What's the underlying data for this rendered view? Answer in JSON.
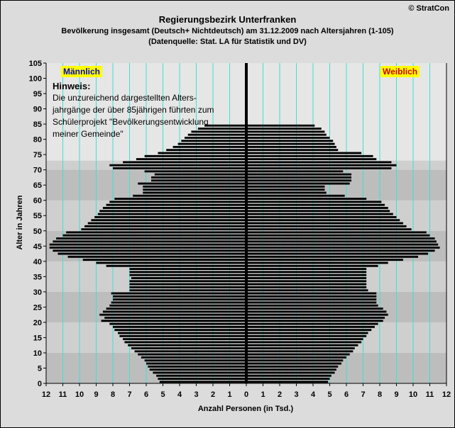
{
  "copyright": "© StratCon",
  "title": "Regierungsbezirk Unterfranken",
  "subtitle": "Bevölkerung  insgesamt (Deutsch+ Nichtdeutsch) am 31.12.2009 nach Altersjahren (1-105)",
  "source": "(Datenquelle: Stat. LA für Statistik und DV)",
  "colors": {
    "bars": "#000000",
    "grid": "#40e0d0",
    "male_box": "#ffff00",
    "male_text": "#0000cc",
    "female_box": "#ffff00",
    "female_text": "#cc0000",
    "band_light": "#e6e6e6",
    "band_mid": "#cfcfcf",
    "band_dark": "#bdbdbd"
  },
  "chart_data": {
    "type": "bar",
    "orientation": "horizontal",
    "title": "Regierungsbezirk Unterfranken",
    "ylabel": "Alter in Jahren",
    "xlabel": "Anzahl Personen (in Tsd.)",
    "yticks": [
      "0",
      "5",
      "10",
      "15",
      "20",
      "25",
      "30",
      "35",
      "40",
      "45",
      "50",
      "55",
      "60",
      "65",
      "70",
      "75",
      "80",
      "85",
      "90",
      "95",
      "100",
      "105"
    ],
    "xticks": [
      "12",
      "11",
      "10",
      "9",
      "8",
      "7",
      "6",
      "5",
      "4",
      "3",
      "2",
      "1",
      "0",
      "1",
      "2",
      "3",
      "4",
      "5",
      "6",
      "7",
      "8",
      "9",
      "10",
      "11",
      "12"
    ],
    "xlim": [
      -12,
      12
    ],
    "ylim": [
      0,
      105
    ],
    "legend": {
      "male": "Männlich",
      "female": "Weiblich"
    },
    "note": {
      "title": "Hinweis:",
      "lines": [
        "Die unzureichend dargestellten Alters-",
        "jahrgänge der über 85jährigen führten zum",
        "Schülerprojekt \"Bevölkerungsentwicklung",
        "meiner Gemeinde\""
      ]
    },
    "ages": [
      0,
      1,
      2,
      3,
      4,
      5,
      6,
      7,
      8,
      9,
      10,
      11,
      12,
      13,
      14,
      15,
      16,
      17,
      18,
      19,
      20,
      21,
      22,
      23,
      24,
      25,
      26,
      27,
      28,
      29,
      30,
      31,
      32,
      33,
      34,
      35,
      36,
      37,
      38,
      39,
      40,
      41,
      42,
      43,
      44,
      45,
      46,
      47,
      48,
      49,
      50,
      51,
      52,
      53,
      54,
      55,
      56,
      57,
      58,
      59,
      60,
      61,
      62,
      63,
      64,
      65,
      66,
      67,
      68,
      69,
      70,
      71,
      72,
      73,
      74,
      75,
      76,
      77,
      78,
      79,
      80,
      81,
      82,
      83,
      84
    ],
    "series": [
      {
        "name": "Männlich",
        "values": [
          5.2,
          5.3,
          5.4,
          5.6,
          5.8,
          5.9,
          6.0,
          6.1,
          6.3,
          6.5,
          6.7,
          6.9,
          7.1,
          7.3,
          7.4,
          7.6,
          7.7,
          7.9,
          8.0,
          8.2,
          8.7,
          8.5,
          8.8,
          8.6,
          8.4,
          8.2,
          8.1,
          8.0,
          8.0,
          8.1,
          7.0,
          7.0,
          7.0,
          7.0,
          6.9,
          7.0,
          7.0,
          7.0,
          8.4,
          9.0,
          9.8,
          10.7,
          11.3,
          11.6,
          11.8,
          11.8,
          11.6,
          11.4,
          11.0,
          10.8,
          9.9,
          9.7,
          9.5,
          9.3,
          9.1,
          8.9,
          8.8,
          8.6,
          8.4,
          8.2,
          7.9,
          6.8,
          6.2,
          6.2,
          6.2,
          6.5,
          5.7,
          5.7,
          5.5,
          6.1,
          8.0,
          8.2,
          7.4,
          6.6,
          6.1,
          5.3,
          4.8,
          4.4,
          4.1,
          3.9,
          3.7,
          3.5,
          3.3,
          2.9,
          2.5
        ]
      },
      {
        "name": "Weiblich",
        "values": [
          4.9,
          5.0,
          5.1,
          5.3,
          5.4,
          5.5,
          5.7,
          5.8,
          6.0,
          6.2,
          6.4,
          6.5,
          6.7,
          6.9,
          7.0,
          7.2,
          7.3,
          7.5,
          7.7,
          7.9,
          8.2,
          8.3,
          8.5,
          8.4,
          8.2,
          7.9,
          7.8,
          7.8,
          7.8,
          7.8,
          7.3,
          7.2,
          7.2,
          7.2,
          7.2,
          7.2,
          7.2,
          7.2,
          7.9,
          8.5,
          9.4,
          10.3,
          10.9,
          11.3,
          11.6,
          11.5,
          11.4,
          11.3,
          11.0,
          10.8,
          9.9,
          9.6,
          9.4,
          9.2,
          9.0,
          8.8,
          8.6,
          8.5,
          8.3,
          8.1,
          7.2,
          5.9,
          4.8,
          4.7,
          4.7,
          6.2,
          6.3,
          6.3,
          6.3,
          5.8,
          8.7,
          9.0,
          8.7,
          7.8,
          7.6,
          6.9,
          5.5,
          5.4,
          5.3,
          5.2,
          5.0,
          4.8,
          4.7,
          4.5,
          4.1
        ]
      }
    ]
  }
}
